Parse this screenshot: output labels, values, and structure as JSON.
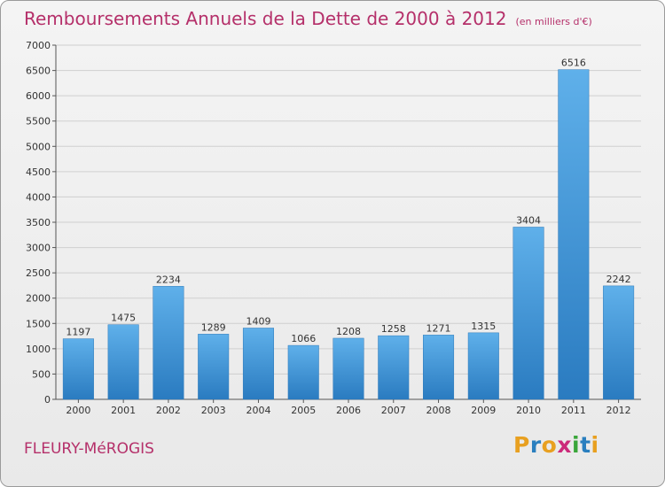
{
  "header": {
    "title": "Remboursements Annuels de la Dette de 2000 à 2012",
    "unit": "(en milliers d'€)"
  },
  "footer": {
    "town": "FLEURY-MéROGIS",
    "logo": "Proxiti",
    "logo_letters": [
      {
        "char": "P",
        "color": "#e8a020"
      },
      {
        "char": "r",
        "color": "#2a7fbf"
      },
      {
        "char": "o",
        "color": "#e8a020"
      },
      {
        "char": "x",
        "color": "#cc2a7a"
      },
      {
        "char": "i",
        "color": "#3aa63a"
      },
      {
        "char": "t",
        "color": "#2a7fbf"
      },
      {
        "char": "i",
        "color": "#e8a020"
      }
    ]
  },
  "chart_data": {
    "type": "bar",
    "categories": [
      "2000",
      "2001",
      "2002",
      "2003",
      "2004",
      "2005",
      "2006",
      "2007",
      "2008",
      "2009",
      "2010",
      "2011",
      "2012"
    ],
    "values": [
      1197,
      1475,
      2234,
      1289,
      1409,
      1066,
      1208,
      1258,
      1271,
      1315,
      3404,
      6516,
      2242
    ],
    "ylim": [
      0,
      7000
    ],
    "yticks": [
      0,
      500,
      1000,
      1500,
      2000,
      2500,
      3000,
      3500,
      4000,
      4500,
      5000,
      5500,
      6000,
      6500,
      7000
    ],
    "grid": true,
    "bar_color": "#3d95d8",
    "title_color": "#b5306a"
  }
}
